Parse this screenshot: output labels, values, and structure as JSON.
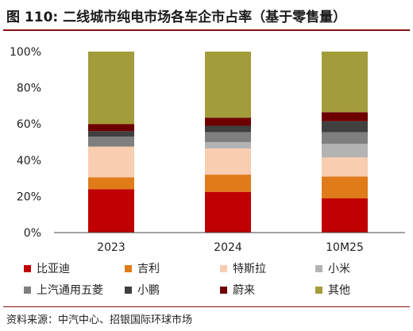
{
  "title": "图 110: 二线城市纯电市场各车企市占率（基于零售量）",
  "source": "资料来源：中汽中心、招银国际环球市场",
  "chart_data": {
    "type": "bar",
    "stacked": true,
    "categories": [
      "2023",
      "2024",
      "10M25"
    ],
    "ylim": [
      0,
      100
    ],
    "yticks": [
      "0%",
      "20%",
      "40%",
      "60%",
      "80%",
      "100%"
    ],
    "ytick_values": [
      0,
      20,
      40,
      60,
      80,
      100
    ],
    "grid": false,
    "legend_placement": "bottom",
    "series": [
      {
        "name": "比亚迪",
        "color": "#c00000",
        "values": [
          24,
          22.5,
          19
        ]
      },
      {
        "name": "吉利",
        "color": "#e07b1a",
        "values": [
          6.5,
          9.5,
          12
        ]
      },
      {
        "name": "特斯拉",
        "color": "#f9cdb0",
        "values": [
          17,
          14.5,
          10.5
        ]
      },
      {
        "name": "小米",
        "color": "#b3b3b3",
        "values": [
          0,
          3.5,
          7.5
        ]
      },
      {
        "name": "上汽通用五菱",
        "color": "#7f7f7f",
        "values": [
          5.5,
          5.5,
          6.5
        ]
      },
      {
        "name": "小鹏",
        "color": "#404040",
        "values": [
          3,
          3.5,
          6
        ]
      },
      {
        "name": "蔚来",
        "color": "#6e0000",
        "values": [
          4,
          4.5,
          5
        ]
      },
      {
        "name": "其他",
        "color": "#a39c3a",
        "values": [
          40,
          36.5,
          33.5
        ]
      }
    ]
  }
}
